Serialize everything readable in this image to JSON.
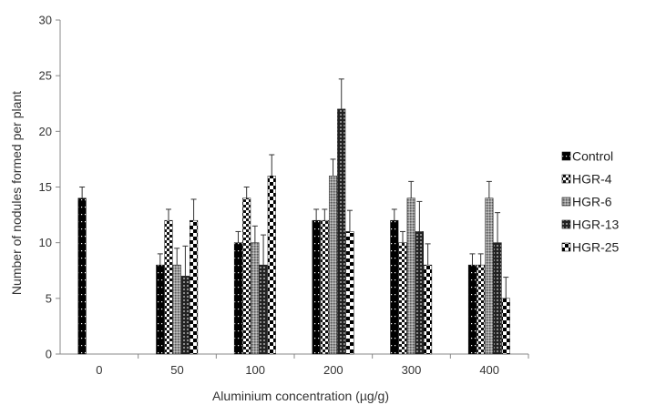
{
  "chart_data": {
    "type": "bar",
    "title": "",
    "xlabel": "Aluminium concentration (µg/g)",
    "ylabel": "Number of nodules formed per plant",
    "categories": [
      "0",
      "50",
      "100",
      "200",
      "300",
      "400"
    ],
    "ylim": [
      0,
      30
    ],
    "yticks": [
      0,
      5,
      10,
      15,
      20,
      25,
      30
    ],
    "grid": false,
    "legend_position": "right",
    "series": [
      {
        "name": "Control",
        "pattern": "black-dotted",
        "values": [
          14,
          8,
          10,
          12,
          12,
          8
        ],
        "errors": [
          1.0,
          1.0,
          1.0,
          1.0,
          1.0,
          1.0
        ]
      },
      {
        "name": "HGR-4",
        "pattern": "checker-fine",
        "values": [
          null,
          12,
          14,
          12,
          10,
          8
        ],
        "errors": [
          null,
          1.0,
          1.0,
          1.0,
          1.0,
          1.0
        ]
      },
      {
        "name": "HGR-6",
        "pattern": "grey-dense",
        "values": [
          null,
          8,
          10,
          16,
          14,
          14
        ],
        "errors": [
          null,
          1.5,
          1.5,
          1.5,
          1.5,
          1.5
        ]
      },
      {
        "name": "HGR-13",
        "pattern": "grid-dark",
        "values": [
          null,
          7,
          8,
          22,
          11,
          10
        ],
        "errors": [
          null,
          2.7,
          2.7,
          2.7,
          2.7,
          2.7
        ]
      },
      {
        "name": "HGR-25",
        "pattern": "checker-large",
        "values": [
          null,
          12,
          16,
          11,
          8,
          5
        ],
        "errors": [
          null,
          1.9,
          1.9,
          1.9,
          1.9,
          1.9
        ]
      }
    ]
  }
}
